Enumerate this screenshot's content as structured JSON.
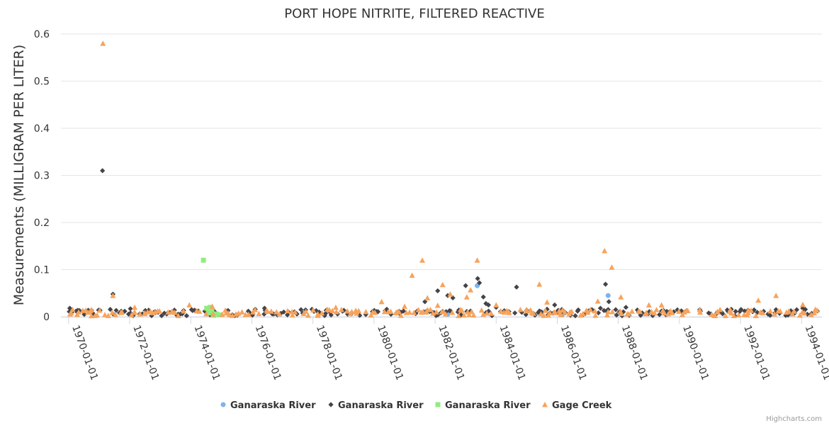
{
  "chart_data": {
    "type": "scatter",
    "title": "PORT HOPE NITRITE, FILTERED REACTIVE",
    "xlabel": "",
    "ylabel": "Measurements (MILLIGRAM PER LITER)",
    "x_type": "date",
    "xlim": [
      "1969-10-01",
      "1994-09-01"
    ],
    "ylim": [
      0,
      0.6
    ],
    "y_ticks": [
      "0",
      "0.1",
      "0.2",
      "0.3",
      "0.4",
      "0.5",
      "0.6"
    ],
    "x_ticks": [
      "1970-01-01",
      "1972-01-01",
      "1974-01-01",
      "1976-01-01",
      "1978-01-01",
      "1980-01-01",
      "1982-01-01",
      "1984-01-01",
      "1986-01-01",
      "1988-01-01",
      "1990-01-01",
      "1992-01-01",
      "1994-01-01"
    ],
    "grid": "horizontal",
    "legend_position": "bottom-center",
    "series": [
      {
        "name": "Ganaraska River",
        "marker": "circle",
        "color": "#7cb5ec",
        "points": [
          [
            "1983-05-20",
            0.066
          ],
          [
            "1987-09-01",
            0.045
          ],
          [
            "1982-06-01",
            0.005
          ],
          [
            "1986-03-01",
            0.004
          ]
        ]
      },
      {
        "name": "Ganaraska River",
        "marker": "diamond",
        "color": "#434348",
        "points": [
          [
            "1970-01-15",
            0.018
          ],
          [
            "1970-04-01",
            0.012
          ],
          [
            "1970-07-01",
            0.01
          ],
          [
            "1970-10-01",
            0.014
          ],
          [
            "1971-02-10",
            0.31
          ],
          [
            "1971-06-15",
            0.048
          ],
          [
            "1971-09-01",
            0.008
          ],
          [
            "1972-01-10",
            0.017
          ],
          [
            "1972-06-01",
            0.006
          ],
          [
            "1972-11-01",
            0.011
          ],
          [
            "1973-04-01",
            0.008
          ],
          [
            "1973-09-01",
            0.006
          ],
          [
            "1974-01-10",
            0.015
          ],
          [
            "1974-04-01",
            0.012
          ],
          [
            "1976-06-01",
            0.018
          ],
          [
            "1976-09-01",
            0.006
          ],
          [
            "1977-03-01",
            0.004
          ],
          [
            "1978-06-01",
            0.007
          ],
          [
            "1979-04-01",
            0.006
          ],
          [
            "1980-02-01",
            0.011
          ],
          [
            "1980-11-01",
            0.007
          ],
          [
            "1981-06-01",
            0.012
          ],
          [
            "1981-09-01",
            0.032
          ],
          [
            "1981-12-01",
            0.009
          ],
          [
            "1982-02-01",
            0.055
          ],
          [
            "1982-04-01",
            0.011
          ],
          [
            "1982-06-01",
            0.045
          ],
          [
            "1982-08-01",
            0.04
          ],
          [
            "1982-10-01",
            0.01
          ],
          [
            "1983-01-01",
            0.066
          ],
          [
            "1983-03-01",
            0.012
          ],
          [
            "1983-05-25",
            0.081
          ],
          [
            "1983-06-15",
            0.072
          ],
          [
            "1983-08-01",
            0.042
          ],
          [
            "1983-09-01",
            0.028
          ],
          [
            "1983-10-01",
            0.025
          ],
          [
            "1984-01-01",
            0.02
          ],
          [
            "1984-06-01",
            0.011
          ],
          [
            "1984-09-01",
            0.063
          ],
          [
            "1985-01-01",
            0.014
          ],
          [
            "1985-06-01",
            0.012
          ],
          [
            "1985-09-01",
            0.016
          ],
          [
            "1985-12-01",
            0.025
          ],
          [
            "1986-04-01",
            0.01
          ],
          [
            "1986-09-01",
            0.012
          ],
          [
            "1987-06-01",
            0.018
          ],
          [
            "1987-08-01",
            0.069
          ],
          [
            "1987-09-10",
            0.032
          ],
          [
            "1987-12-01",
            0.015
          ],
          [
            "1988-04-01",
            0.02
          ],
          [
            "1988-09-01",
            0.01
          ],
          [
            "1989-06-01",
            0.012
          ],
          [
            "1990-02-01",
            0.011
          ],
          [
            "1990-09-01",
            0.015
          ],
          [
            "1991-04-01",
            0.01
          ],
          [
            "1992-04-01",
            0.014
          ],
          [
            "1993-03-01",
            0.015
          ],
          [
            "1993-09-01",
            0.01
          ],
          [
            "1994-01-15",
            0.018
          ],
          [
            "1994-05-01",
            0.007
          ]
        ]
      },
      {
        "name": "Ganaraska River",
        "marker": "square",
        "color": "#90ed7d",
        "points": [
          [
            "1974-06-01",
            0.12
          ],
          [
            "1974-07-10",
            0.018
          ],
          [
            "1974-08-01",
            0.008
          ],
          [
            "1974-08-20",
            0.02
          ],
          [
            "1974-09-10",
            0.012
          ],
          [
            "1974-10-01",
            0.003
          ],
          [
            "1974-11-01",
            0.006
          ],
          [
            "1974-12-10",
            0.004
          ]
        ]
      },
      {
        "name": "Gage Creek",
        "marker": "triangle",
        "color": "#f7a35c",
        "points": [
          [
            "1970-02-01",
            0.008
          ],
          [
            "1970-05-01",
            0.01
          ],
          [
            "1970-10-01",
            0.015
          ],
          [
            "1971-02-15",
            0.58
          ],
          [
            "1971-06-15",
            0.045
          ],
          [
            "1971-10-01",
            0.01
          ],
          [
            "1972-03-01",
            0.02
          ],
          [
            "1972-07-01",
            0.008
          ],
          [
            "1972-12-01",
            0.012
          ],
          [
            "1973-06-01",
            0.01
          ],
          [
            "1973-12-15",
            0.025
          ],
          [
            "1974-09-15",
            0.022
          ],
          [
            "1975-03-01",
            0.008
          ],
          [
            "1976-01-15",
            0.01
          ],
          [
            "1977-06-01",
            0.01
          ],
          [
            "1978-03-01",
            0.006
          ],
          [
            "1978-10-01",
            0.02
          ],
          [
            "1979-06-01",
            0.012
          ],
          [
            "1980-04-01",
            0.032
          ],
          [
            "1980-10-01",
            0.01
          ],
          [
            "1981-01-01",
            0.022
          ],
          [
            "1981-04-01",
            0.088
          ],
          [
            "1981-06-15",
            0.015
          ],
          [
            "1981-08-01",
            0.12
          ],
          [
            "1981-10-01",
            0.04
          ],
          [
            "1982-02-01",
            0.024
          ],
          [
            "1982-04-01",
            0.068
          ],
          [
            "1982-07-01",
            0.048
          ],
          [
            "1982-11-01",
            0.015
          ],
          [
            "1983-01-15",
            0.042
          ],
          [
            "1983-03-01",
            0.057
          ],
          [
            "1983-05-20",
            0.12
          ],
          [
            "1983-08-01",
            0.005
          ],
          [
            "1984-01-01",
            0.025
          ],
          [
            "1984-06-01",
            0.01
          ],
          [
            "1985-03-01",
            0.008
          ],
          [
            "1985-06-01",
            0.069
          ],
          [
            "1985-09-01",
            0.031
          ],
          [
            "1986-02-01",
            0.008
          ],
          [
            "1986-06-01",
            0.01
          ],
          [
            "1987-02-01",
            0.015
          ],
          [
            "1987-05-01",
            0.033
          ],
          [
            "1987-07-20",
            0.14
          ],
          [
            "1987-10-15",
            0.105
          ],
          [
            "1988-02-01",
            0.042
          ],
          [
            "1988-09-01",
            0.012
          ],
          [
            "1989-01-01",
            0.025
          ],
          [
            "1989-06-01",
            0.025
          ],
          [
            "1990-03-01",
            0.01
          ],
          [
            "1990-09-01",
            0.015
          ],
          [
            "1991-04-01",
            0.01
          ],
          [
            "1991-09-01",
            0.015
          ],
          [
            "1992-04-01",
            0.008
          ],
          [
            "1992-08-01",
            0.035
          ],
          [
            "1993-03-01",
            0.045
          ],
          [
            "1993-08-01",
            0.012
          ],
          [
            "1994-01-15",
            0.026
          ],
          [
            "1994-06-01",
            0.008
          ]
        ]
      }
    ]
  },
  "credits": "Highcharts.com"
}
